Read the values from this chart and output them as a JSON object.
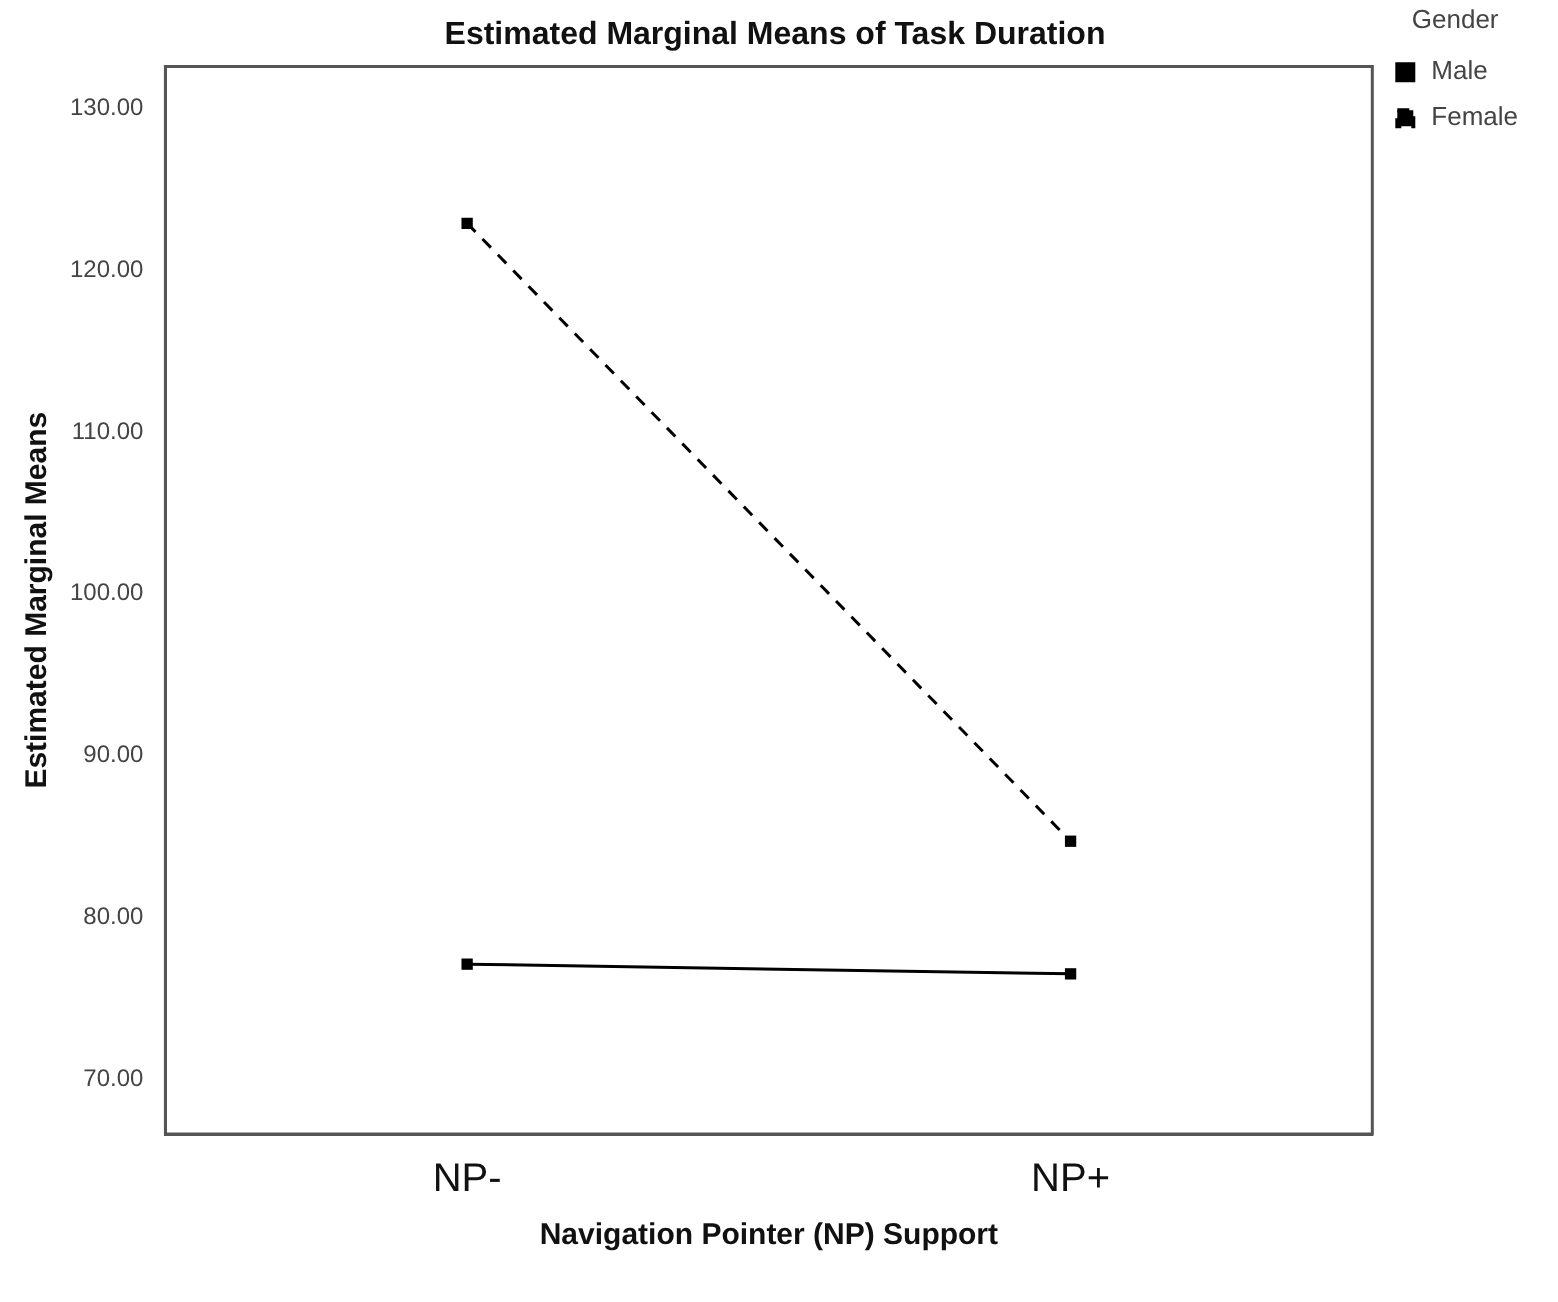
{
  "chart_data": {
    "type": "line",
    "title": "Estimated Marginal Means of Task Duration",
    "xlabel": "Navigation Pointer (NP) Support",
    "ylabel": "Estimated Marginal Means",
    "legend_title": "Gender",
    "categories": [
      "NP-",
      "NP+"
    ],
    "series": [
      {
        "name": "Male",
        "color": "#000000",
        "values": [
          77.1,
          76.5
        ],
        "line_style": "solid"
      },
      {
        "name": "Female",
        "color": "#000000",
        "values": [
          122.9,
          84.7
        ],
        "line_style": "dashed"
      }
    ],
    "ylim": [
      66.6,
      132.6
    ],
    "yticks": [
      {
        "value": 70,
        "label": "70.00"
      },
      {
        "value": 80,
        "label": "80.00"
      },
      {
        "value": 90,
        "label": "90.00"
      },
      {
        "value": 100,
        "label": "100.00"
      },
      {
        "value": 110,
        "label": "110.00"
      },
      {
        "value": 120,
        "label": "120.00"
      },
      {
        "value": 130,
        "label": "130.00"
      }
    ],
    "grid": false,
    "legend": "top right",
    "marker": "square"
  }
}
